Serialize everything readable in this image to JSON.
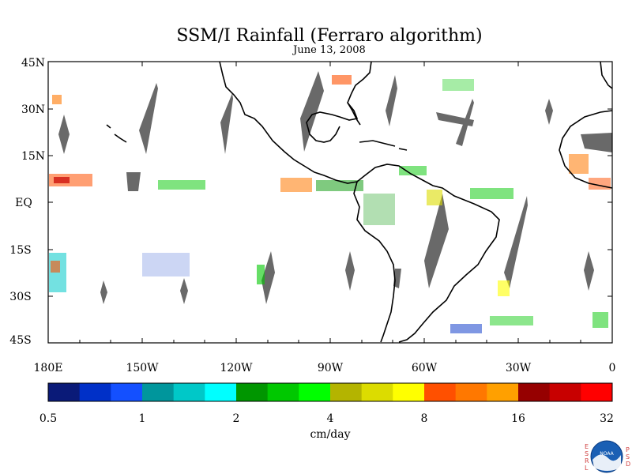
{
  "title": "SSM/I Rainfall (Ferraro algorithm)",
  "subtitle": "June 13, 2008",
  "map": {
    "lat_labels": [
      "45N",
      "30N",
      "15N",
      "EQ",
      "15S",
      "30S",
      "45S"
    ],
    "lat_values": [
      45,
      30,
      15,
      0,
      -15,
      -30,
      -45
    ],
    "lon_labels": [
      "180E",
      "150W",
      "120W",
      "90W",
      "60W",
      "30W",
      "0"
    ],
    "lon_values": [
      -180,
      -150,
      -120,
      -90,
      -60,
      -30,
      0
    ],
    "lon_range": [
      -180,
      0
    ],
    "lat_range": [
      -45,
      45
    ],
    "land_color": "#000000",
    "no_data_color": "#696969"
  },
  "colorbar": {
    "tick_labels": [
      "0.5",
      "1",
      "2",
      "4",
      "8",
      "16",
      "32"
    ],
    "unit_label": "cm/day",
    "colors": [
      "#0a1a78",
      "#0030c8",
      "#1450ff",
      "#00969c",
      "#00c8c8",
      "#00ffff",
      "#009600",
      "#00c800",
      "#00ff00",
      "#b4b400",
      "#dcdc00",
      "#ffff00",
      "#ff5000",
      "#ff7800",
      "#ffa000",
      "#960000",
      "#c80000",
      "#ff0000"
    ]
  },
  "logo": {
    "left_letters": [
      "E",
      "S",
      "R",
      "L"
    ],
    "right_letters": [
      "P",
      "S",
      "D"
    ],
    "center_text": "NOAA"
  }
}
